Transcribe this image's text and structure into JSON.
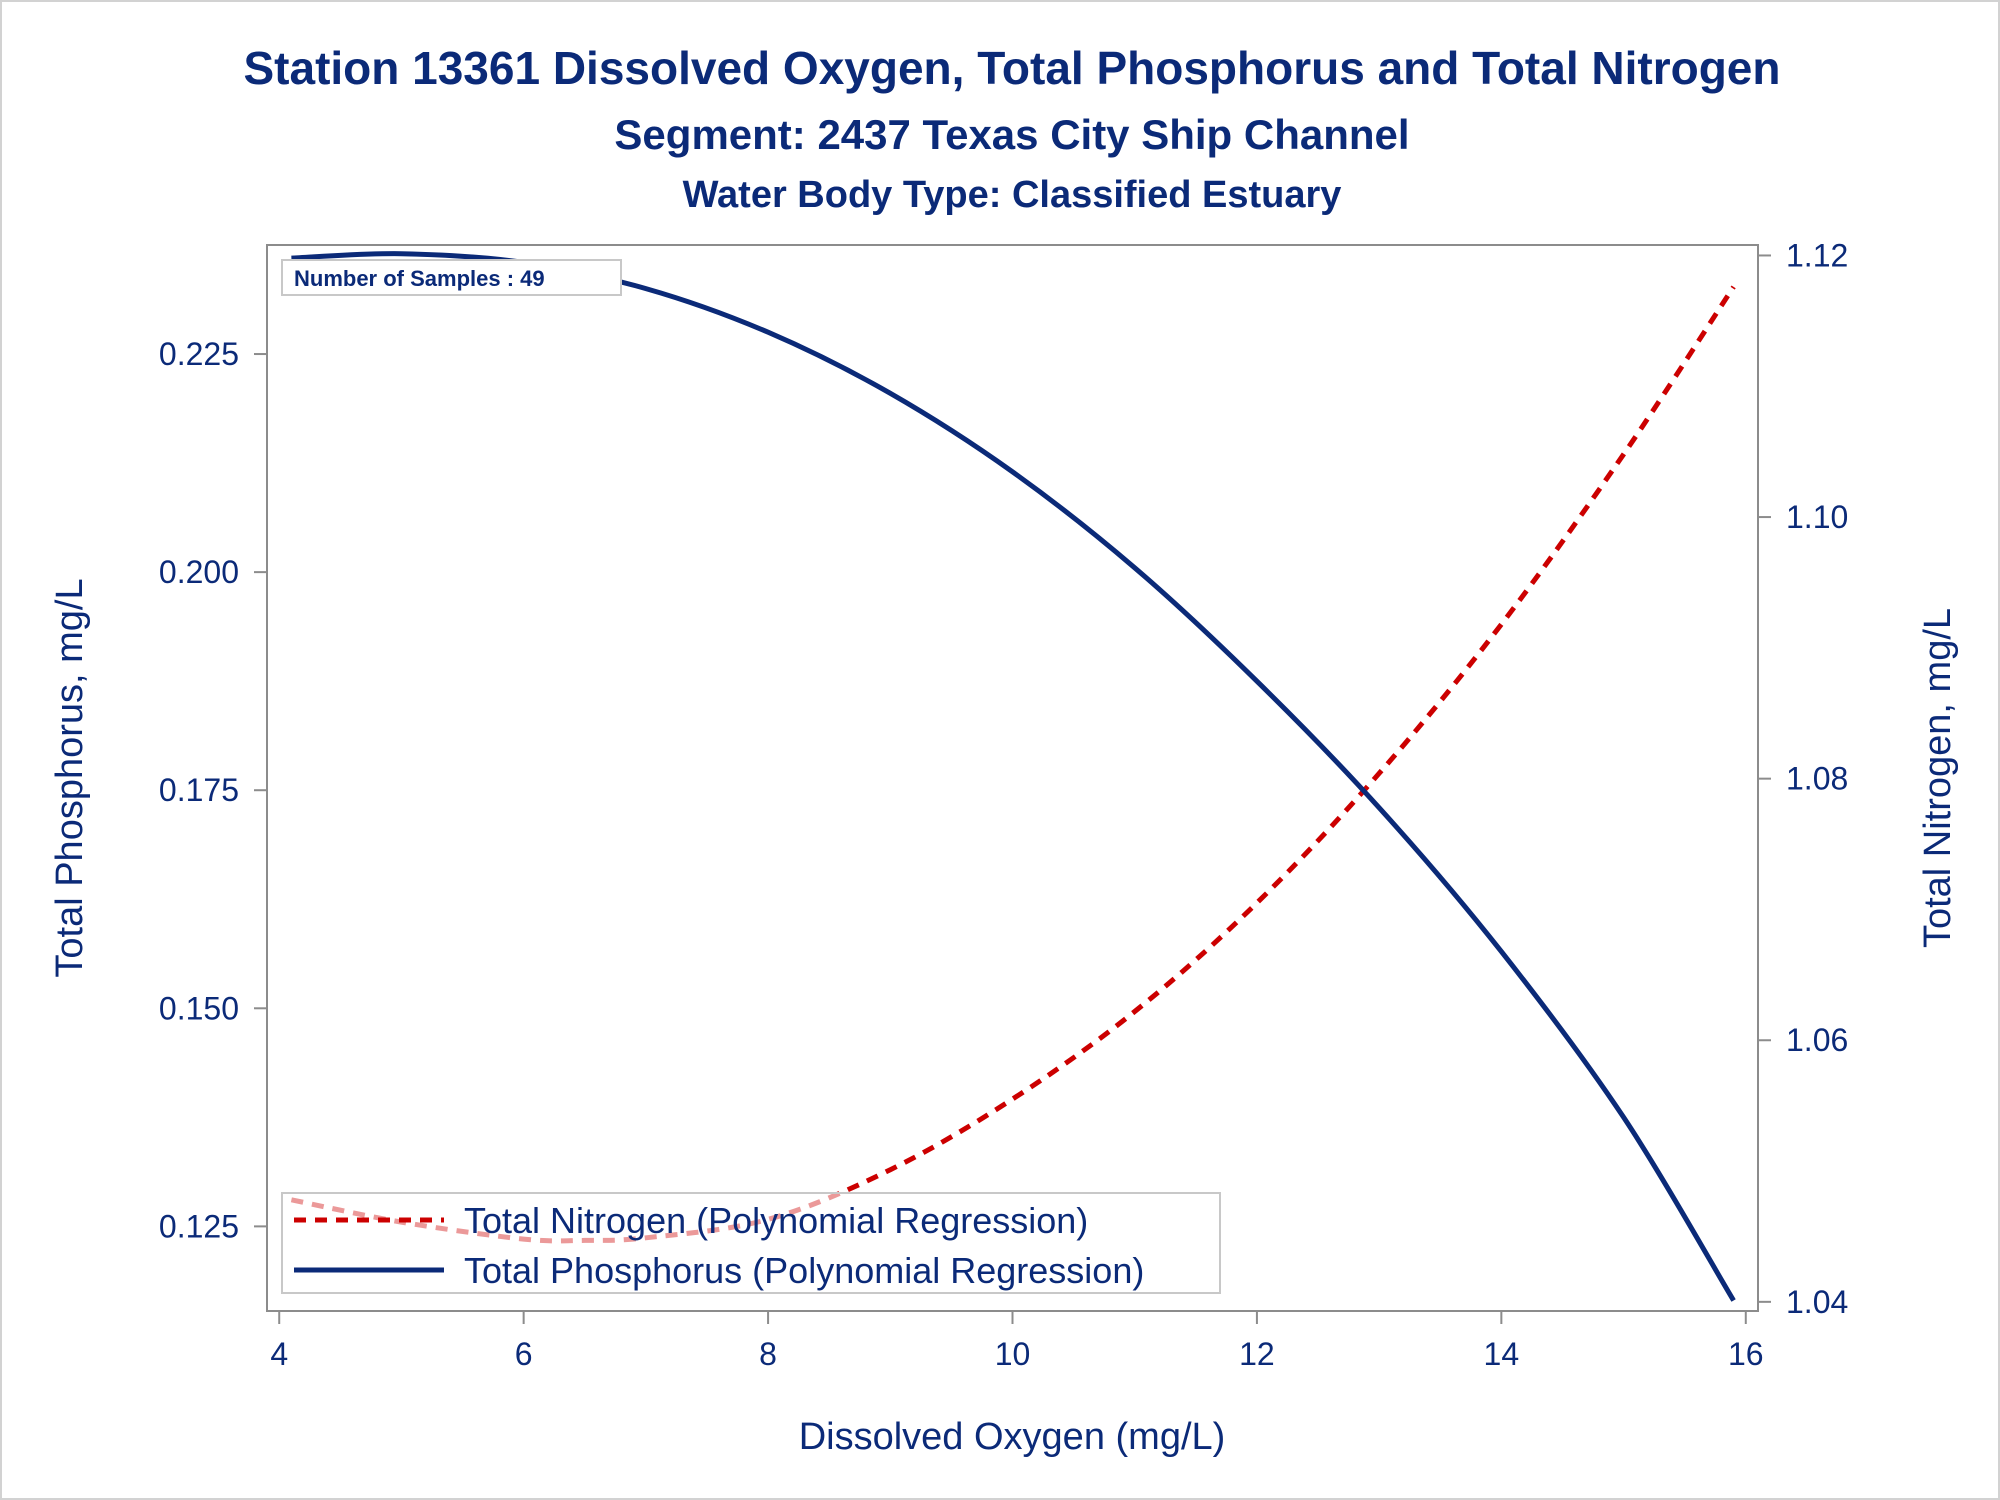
{
  "chart_data": {
    "type": "line",
    "title": "Station 13361  Dissolved Oxygen, Total Phosphorus and Total Nitrogen",
    "subtitle": "Segment: 2437  Texas City Ship Channel",
    "subtitle2": "Water Body Type: Classified Estuary",
    "xlabel": "Dissolved Oxygen (mg/L)",
    "ylabel": "Total Phosphorus, mg/L",
    "y2label": "Total Nitrogen, mg/L",
    "xlim": [
      3.9,
      16.1
    ],
    "ylim": [
      0.1153,
      0.2375
    ],
    "y2lim": [
      1.0393,
      1.1208
    ],
    "x_ticks": [
      4,
      6,
      8,
      10,
      12,
      14,
      16
    ],
    "y_ticks": [
      0.125,
      0.15,
      0.175,
      0.2,
      0.225
    ],
    "y2_ticks": [
      1.04,
      1.06,
      1.08,
      1.1,
      1.12
    ],
    "x_tick_labels": [
      "4",
      "6",
      "8",
      "10",
      "12",
      "14",
      "16"
    ],
    "y_tick_labels": [
      "0.125",
      "0.150",
      "0.175",
      "0.200",
      "0.225"
    ],
    "y2_tick_labels": [
      "1.04",
      "1.06",
      "1.08",
      "1.10",
      "1.12"
    ],
    "inset": "Number of Samples : 49",
    "legend_position": "bottom-left",
    "grid": false,
    "series": [
      {
        "name": "Total Nitrogen (Polynomial Regression)",
        "axis": "right",
        "style": "dashed",
        "color": "#cc0000",
        "x": [
          4.1,
          5,
          6,
          6.5,
          7,
          8,
          9,
          10,
          11,
          12,
          13,
          14,
          15,
          15.9
        ],
        "y": [
          1.0478,
          1.0461,
          1.0448,
          1.0447,
          1.0449,
          1.0463,
          1.0501,
          1.0555,
          1.0622,
          1.0705,
          1.0804,
          1.0918,
          1.1048,
          1.1176
        ]
      },
      {
        "name": "Total Phosphorus (Polynomial Regression)",
        "axis": "left",
        "style": "solid",
        "color": "#0b2a78",
        "x": [
          4.1,
          5,
          6,
          7,
          8,
          9,
          10,
          11,
          12,
          13,
          14,
          15,
          15.9
        ],
        "y": [
          0.236,
          0.2365,
          0.2355,
          0.2325,
          0.2275,
          0.2205,
          0.2115,
          0.2005,
          0.1875,
          0.173,
          0.1565,
          0.1375,
          0.1165
        ]
      }
    ]
  }
}
